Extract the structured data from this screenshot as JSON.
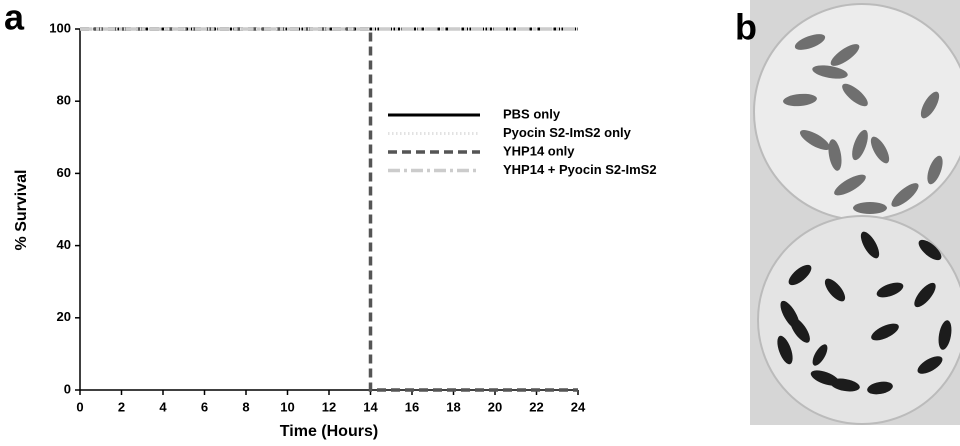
{
  "chart_data": {
    "type": "line",
    "panel_label": "a",
    "xlabel": "Time (Hours)",
    "ylabel": "% Survival",
    "x": [
      0,
      14,
      14,
      24
    ],
    "series": [
      {
        "name": "PBS only",
        "color": "#000000",
        "linestyle": "solid",
        "values": [
          100,
          100,
          100,
          100
        ]
      },
      {
        "name": "Pyocin S2-ImS2 only",
        "color": "#e2e2e2",
        "linestyle": "dotted",
        "values": [
          100,
          100,
          100,
          100
        ]
      },
      {
        "name": "YHP14 only",
        "color": "#555555",
        "linestyle": "dashed",
        "values": [
          100,
          100,
          0,
          0
        ]
      },
      {
        "name": "YHP14 + Pyocin S2-ImS2",
        "color": "#cccccc",
        "linestyle": "dashdot",
        "values": [
          100,
          100,
          100,
          100
        ]
      }
    ],
    "xlim": [
      0,
      24
    ],
    "xticks": [
      0,
      2,
      4,
      6,
      8,
      10,
      12,
      14,
      16,
      18,
      20,
      22,
      24
    ],
    "ylim": [
      0,
      100
    ],
    "yticks": [
      0,
      20,
      40,
      60,
      80,
      100
    ],
    "legend": "center right"
  },
  "photo": {
    "panel_label": "b"
  }
}
